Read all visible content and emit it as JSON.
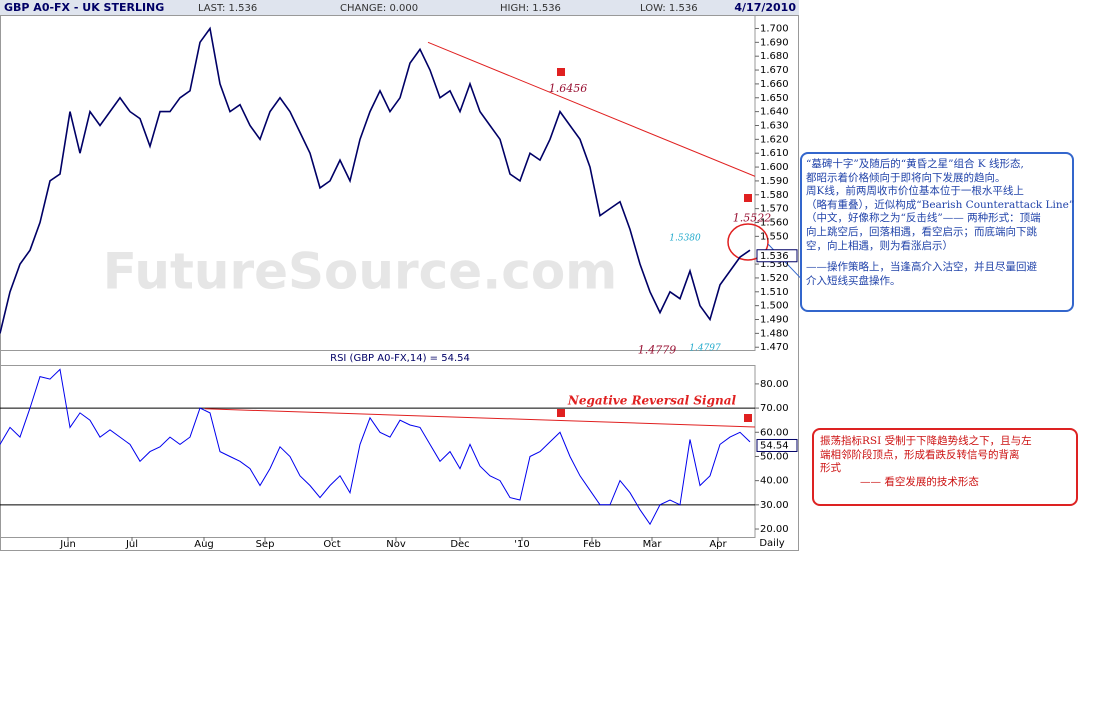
{
  "header": {
    "symbol": "GBP A0-FX - UK STERLING",
    "last": "LAST: 1.536",
    "change": "CHANGE: 0.000",
    "high": "HIGH: 1.536",
    "low": "LOW: 1.536",
    "date": "4/17/2010"
  },
  "watermark": "FutureSource.com",
  "chart_data": [
    {
      "type": "line",
      "color": "#000066",
      "series": [
        {
          "values": [
            1.48,
            1.51,
            1.53,
            1.54,
            1.56,
            1.59,
            1.595,
            1.64,
            1.61,
            1.64,
            1.63,
            1.64,
            1.65,
            1.64,
            1.635,
            1.615,
            1.64,
            1.64,
            1.65,
            1.655,
            1.69,
            1.7,
            1.66,
            1.64,
            1.645,
            1.63,
            1.62,
            1.64,
            1.65,
            1.64,
            1.625,
            1.61,
            1.585,
            1.59,
            1.605,
            1.59,
            1.62,
            1.64,
            1.655,
            1.64,
            1.65,
            1.675,
            1.685,
            1.67,
            1.65,
            1.655,
            1.64,
            1.66,
            1.64,
            1.63,
            1.62,
            1.595,
            1.59,
            1.61,
            1.605,
            1.62,
            1.64,
            1.63,
            1.62,
            1.6,
            1.565,
            1.57,
            1.575,
            1.555,
            1.53,
            1.51,
            1.495,
            1.51,
            1.505,
            1.525,
            1.5,
            1.49,
            1.515,
            1.525,
            1.535,
            1.54
          ]
        }
      ],
      "xlim": [
        0,
        75.5
      ],
      "ylim": [
        1.468,
        1.709
      ],
      "yticks": [
        {
          "value": 1.47,
          "label": "1.470"
        },
        {
          "value": 1.48,
          "label": "1.480"
        },
        {
          "value": 1.49,
          "label": "1.490"
        },
        {
          "value": 1.5,
          "label": "1.500"
        },
        {
          "value": 1.51,
          "label": "1.510"
        },
        {
          "value": 1.52,
          "label": "1.520"
        },
        {
          "value": 1.53,
          "label": "1.530"
        },
        {
          "value": 1.55,
          "label": "1.550"
        },
        {
          "value": 1.56,
          "label": "1.560"
        },
        {
          "value": 1.57,
          "label": "1.570"
        },
        {
          "value": 1.58,
          "label": "1.580"
        },
        {
          "value": 1.59,
          "label": "1.590"
        },
        {
          "value": 1.6,
          "label": "1.600"
        },
        {
          "value": 1.61,
          "label": "1.610"
        },
        {
          "value": 1.62,
          "label": "1.620"
        },
        {
          "value": 1.63,
          "label": "1.630"
        },
        {
          "value": 1.64,
          "label": "1.640"
        },
        {
          "value": 1.65,
          "label": "1.650"
        },
        {
          "value": 1.66,
          "label": "1.660"
        },
        {
          "value": 1.67,
          "label": "1.670"
        },
        {
          "value": 1.68,
          "label": "1.680"
        },
        {
          "value": 1.69,
          "label": "1.690"
        },
        {
          "value": 1.7,
          "label": "1.700"
        }
      ],
      "last_marker": 1.536,
      "annotations": [
        {
          "x": 56.8,
          "value": 1.6456
        },
        {
          "x": 75.2,
          "value": 1.5522
        },
        {
          "x": 68.5,
          "value": 1.538,
          "label": "1.5380"
        },
        {
          "x": 65.7,
          "value": 1.4779
        },
        {
          "x": 70.5,
          "value": 1.4797
        }
      ],
      "trendline": {
        "x": [
          42.8,
          80
        ],
        "values": [
          1.69,
          1.58
        ],
        "color": "#e02020"
      }
    },
    {
      "type": "line",
      "title": "RSI (GBP A0-FX,14) = 54.54",
      "color": "#0000ee",
      "series": [
        {
          "values": [
            55,
            62,
            58,
            70,
            83,
            82,
            86,
            62,
            68,
            65,
            58,
            61,
            58,
            55,
            48,
            52,
            54,
            58,
            55,
            58,
            70,
            68,
            52,
            50,
            48,
            45,
            38,
            45,
            54,
            50,
            42,
            38,
            33,
            38,
            42,
            35,
            55,
            66,
            60,
            58,
            65,
            63,
            62,
            55,
            48,
            52,
            45,
            55,
            46,
            42,
            40,
            33,
            32,
            50,
            52,
            56,
            60,
            50,
            42,
            36,
            30,
            30,
            40,
            35,
            28,
            22,
            30,
            32,
            30,
            57,
            38,
            42,
            55,
            58,
            60,
            56
          ]
        }
      ],
      "xlim": [
        0,
        75.5
      ],
      "ylim": [
        16.7,
        87.4
      ],
      "yticks": [
        {
          "value": 20,
          "label": "20.00"
        },
        {
          "value": 30,
          "label": "30.00"
        },
        {
          "value": 40,
          "label": "40.00"
        },
        {
          "value": 50,
          "label": "50.00"
        },
        {
          "value": 60,
          "label": "60.00"
        },
        {
          "value": 70,
          "label": "70.00"
        },
        {
          "value": 80,
          "label": "80.00"
        }
      ],
      "levels": [
        30,
        70
      ],
      "last_marker": 54.54,
      "annotation": "Negative Reversal Signal",
      "trendline": {
        "x": [
          20.5,
          75.5
        ],
        "values": [
          69.7,
          62.2
        ],
        "color": "#e02020"
      },
      "xticks": [
        {
          "value": 6.8,
          "label": "Jun"
        },
        {
          "value": 13.2,
          "label": "Jul"
        },
        {
          "value": 20.4,
          "label": "Aug"
        },
        {
          "value": 26.5,
          "label": "Sep"
        },
        {
          "value": 33.2,
          "label": "Oct"
        },
        {
          "value": 39.6,
          "label": "Nov"
        },
        {
          "value": 46,
          "label": "Dec"
        },
        {
          "value": 52.2,
          "label": "'10"
        },
        {
          "value": 59.2,
          "label": "Feb"
        },
        {
          "value": 65.2,
          "label": "Mar"
        },
        {
          "value": 71.8,
          "label": "Apr"
        }
      ],
      "x_label": "Daily"
    }
  ],
  "notes": {
    "blue": [
      "“墓碑十字”及随后的“黄昏之星”组合 K 线形态,",
      "都昭示着价格倾向于即将向下发展的趋向。",
      "周K线，前两周收市价位基本位于一根水平线上",
      "（略有重叠），近似构成“Bearish Counterattack Line”",
      "（中文，好像称之为“反击线”—— 两种形式：顶端",
      "向上跳空后，回落相遇，看空启示；而底端向下跳",
      "空，向上相遇，则为看涨启示）",
      "——操作策略上，当逢高介入沽空，并且尽量回避",
      "介入短线买盘操作。"
    ],
    "red": [
      "振荡指标RSI 受制于下降趋势线之下，且与左",
      "端相邻阶段顶点，形成看跌反转信号的背离",
      "形式",
      "—— 看空发展的技术形态"
    ]
  }
}
